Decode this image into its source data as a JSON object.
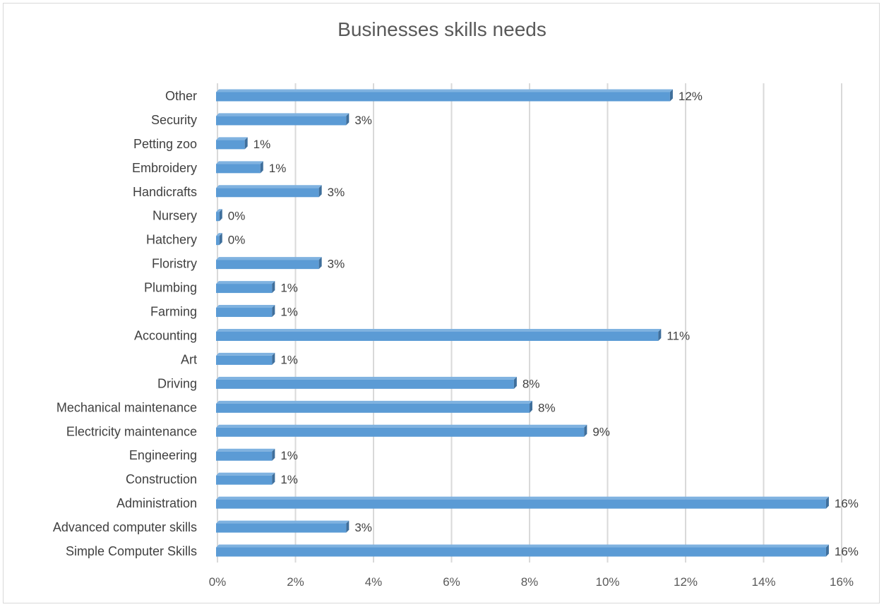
{
  "chart_data": {
    "type": "bar",
    "orientation": "horizontal",
    "title": "Businesses skills needs",
    "xlabel": "",
    "ylabel": "",
    "xlim": [
      0,
      16
    ],
    "x_ticks": [
      "0%",
      "2%",
      "4%",
      "6%",
      "8%",
      "10%",
      "12%",
      "14%",
      "16%"
    ],
    "grid": "vertical",
    "legend": "none",
    "bar_color": "#5b9bd5",
    "bar_side_color": "#3f6f9c",
    "bar_top_color": "#7fb2e0",
    "grid_color": "#d9d9d9",
    "categories": [
      "Other",
      "Security",
      "Petting zoo",
      "Embroidery",
      "Handicrafts",
      "Nursery",
      "Hatchery",
      "Floristry",
      "Plumbing",
      "Farming",
      "Accounting",
      "Art",
      "Driving",
      "Mechanical maintenance",
      "Electricity maintenance",
      "Engineering",
      "Construction",
      "Administration",
      "Advanced computer skills",
      "Simple Computer Skills"
    ],
    "values": [
      11.6,
      3.3,
      0.7,
      1.1,
      2.6,
      0.05,
      0.05,
      2.6,
      1.4,
      1.4,
      11.3,
      1.4,
      7.6,
      8.0,
      9.4,
      1.4,
      1.4,
      15.6,
      3.3,
      15.6
    ],
    "data_labels": [
      "12%",
      "3%",
      "1%",
      "1%",
      "3%",
      "0%",
      "0%",
      "3%",
      "1%",
      "1%",
      "11%",
      "1%",
      "8%",
      "8%",
      "9%",
      "1%",
      "1%",
      "16%",
      "3%",
      "16%"
    ]
  }
}
